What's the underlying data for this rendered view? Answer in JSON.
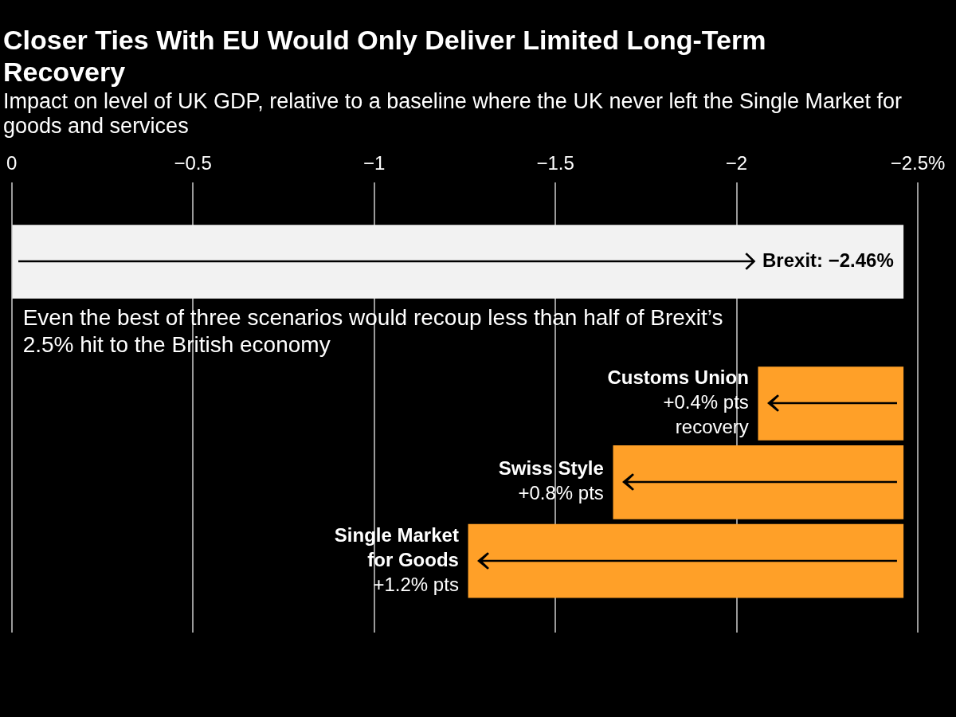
{
  "chart_data": {
    "type": "bar",
    "orientation": "horizontal",
    "title": "Closer Ties With EU Would Only Deliver Limited Long-Term Recovery",
    "subtitle": "Impact on level of UK GDP, relative to a baseline where the UK never left the Single Market for goods and services",
    "categories": [
      null,
      "Customs Union",
      "Swiss Style",
      "Single Market for Goods"
    ],
    "values": [
      -2.46,
      0.4,
      0.8,
      1.2
    ],
    "base": [
      0,
      -2.46,
      -2.46,
      -2.46
    ],
    "colors": [
      "#f2f2f2",
      "#ffa028",
      "#ffa028",
      "#ffa028"
    ],
    "value_labels": [
      "Brexit: −2.46%",
      "+0.4% pts recovery",
      "+0.8% pts",
      "+1.2% pts"
    ],
    "xlim": [
      0,
      -2.5
    ],
    "xticks": [
      0,
      {
        "value": -0.5,
        "label": "−0.5"
      },
      {
        "value": -1,
        "label": "−1"
      },
      {
        "value": -1.5,
        "label": "−1.5"
      },
      {
        "value": -2,
        "label": "−2"
      },
      {
        "value": -2.5,
        "label": "−2.5%"
      }
    ],
    "grid": "x",
    "annotations": [
      "Even the best of three scenarios would recoup less than half of Brexit’s 2.5% hit to the British economy"
    ]
  }
}
